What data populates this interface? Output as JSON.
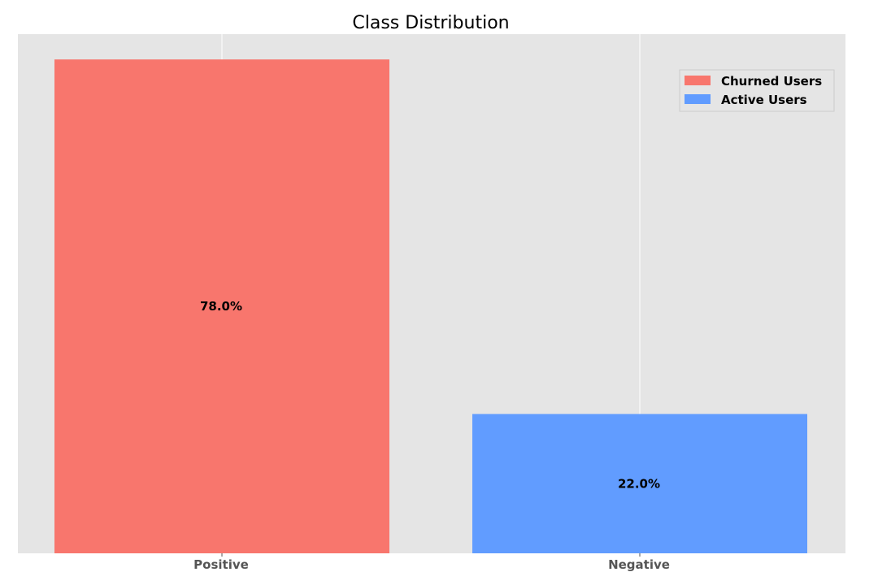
{
  "chart_data": {
    "type": "bar",
    "title": "Class Distribution",
    "categories": [
      "Positive",
      "Negative"
    ],
    "values": [
      78.0,
      22.0
    ],
    "value_labels": [
      "78.0%",
      "22.0%"
    ],
    "bar_colors": [
      "#f8766d",
      "#619cff"
    ],
    "ylim": [
      0,
      82
    ],
    "grid": "vertical lines at categories",
    "background": "#e5e5e5",
    "legend": {
      "placement": "top-right",
      "entries": [
        {
          "label": "Churned Users",
          "color": "#f8766d"
        },
        {
          "label": "Active Users",
          "color": "#619cff"
        }
      ]
    }
  }
}
